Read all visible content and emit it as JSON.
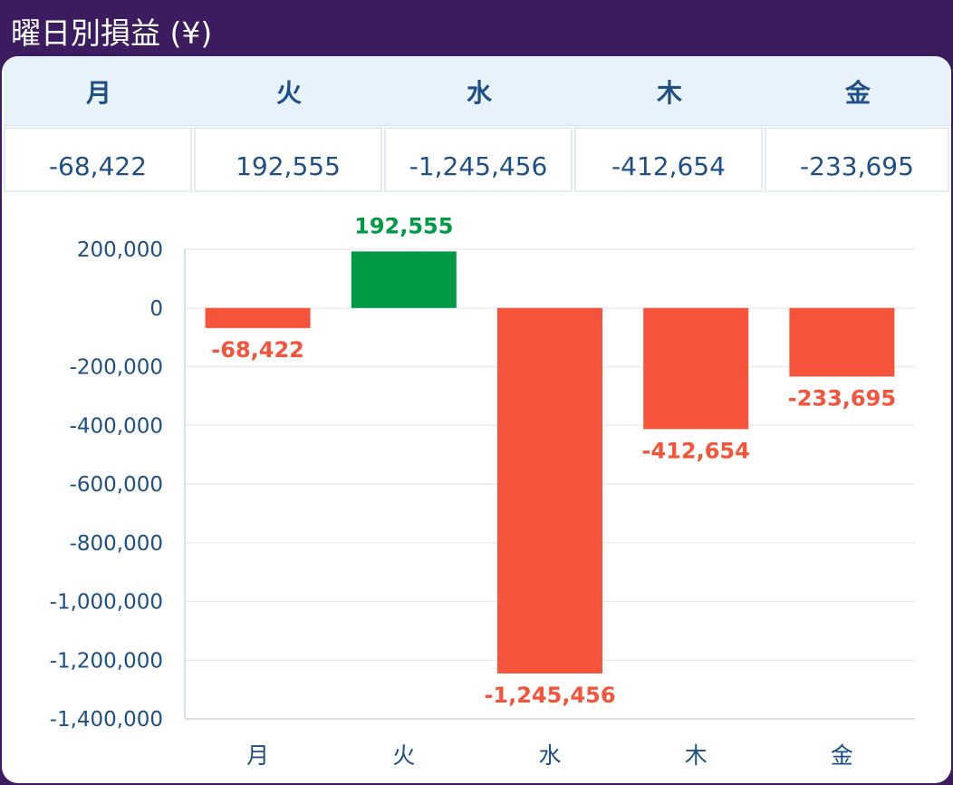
{
  "header": {
    "title": "曜日別損益 (¥)"
  },
  "table": {
    "columns": [
      "月",
      "火",
      "水",
      "木",
      "金"
    ],
    "values": [
      "-68,422",
      "192,555",
      "-1,245,456",
      "-412,654",
      "-233,695"
    ]
  },
  "colors": {
    "positive": "#009a44",
    "negative": "#f5543a",
    "axis": "#1e4f86",
    "grid": "#e6edf3",
    "header_bg": "#3b1c5e"
  },
  "chart_data": {
    "type": "bar",
    "categories": [
      "月",
      "火",
      "水",
      "木",
      "金"
    ],
    "values": [
      -68422,
      192555,
      -1245456,
      -412654,
      -233695
    ],
    "value_labels": [
      "-68,422",
      "192,555",
      "-1,245,456",
      "-412,654",
      "-233,695"
    ],
    "y_ticks": [
      200000,
      0,
      -200000,
      -400000,
      -600000,
      -800000,
      -1000000,
      -1200000,
      -1400000
    ],
    "y_tick_labels": [
      "200,000",
      "0",
      "-200,000",
      "-400,000",
      "-600,000",
      "-800,000",
      "-1,000,000",
      "-1,200,000",
      "-1,400,000"
    ],
    "ylim": [
      -1400000,
      200000
    ],
    "grid": true,
    "legend": "none"
  }
}
